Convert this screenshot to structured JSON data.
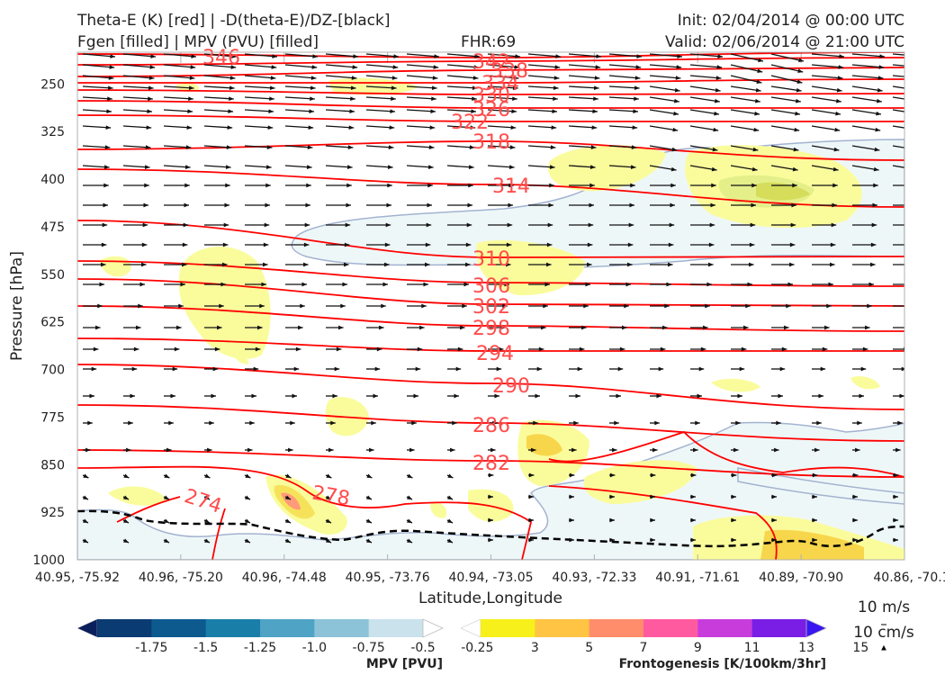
{
  "header": {
    "title_line1": "Theta-E (K) [red] | -D(theta-E)/DZ-[black]",
    "title_line2": "Fgen [filled] | MPV (PVU) [filled]",
    "fhr": "FHR:69",
    "init": "Init: 02/04/2014 @ 00:00 UTC",
    "valid": "Valid: 02/06/2014 @ 21:00 UTC"
  },
  "chart_data": {
    "type": "cross-section",
    "xlabel": "Latitude,Longitude",
    "ylabel": "Pressure [hPa]",
    "y_ticks": [
      "250",
      "325",
      "400",
      "475",
      "550",
      "625",
      "700",
      "775",
      "850",
      "925",
      "1000"
    ],
    "x_ticks": [
      "40.95, -75.92",
      "40.96, -75.20",
      "40.96, -74.48",
      "40.95, -73.76",
      "40.94, -73.05",
      "40.93, -72.33",
      "40.91, -71.61",
      "40.89, -70.90",
      "40.86, -70.1"
    ],
    "ylim": [
      1000,
      200
    ],
    "log_scale": false,
    "theta_e_color": "#ff0000",
    "theta_e_contour_labels": [
      "346",
      "342",
      "338",
      "334",
      "330",
      "326",
      "322",
      "318",
      "314",
      "310",
      "306",
      "302",
      "298",
      "294",
      "290",
      "286",
      "282",
      "278",
      "274"
    ],
    "vector_scale_labels": [
      "10 m/s",
      "10 cm/s"
    ],
    "mpv_colorbar": {
      "label": "MPV [PVU]",
      "ticks": [
        "-1.75",
        "-1.5",
        "-1.25",
        "-1.0",
        "-0.75",
        "-0.5",
        "-0.25"
      ],
      "colors": [
        "#0a1f5c",
        "#0b3b73",
        "#0d5a8f",
        "#1a7fa8",
        "#4fa3c4",
        "#8cc3d8",
        "#c9e2ec",
        "#ffffff"
      ]
    },
    "fgen_colorbar": {
      "label": "Frontogenesis [K/100km/3hr]",
      "ticks": [
        "3",
        "5",
        "7",
        "9",
        "11",
        "13",
        "15"
      ],
      "colors": [
        "#ffffff",
        "#f7f01a",
        "#ffc444",
        "#ff8c6a",
        "#ff5aa0",
        "#c83cdc",
        "#7a1ee6",
        "#3a16f0"
      ]
    }
  }
}
